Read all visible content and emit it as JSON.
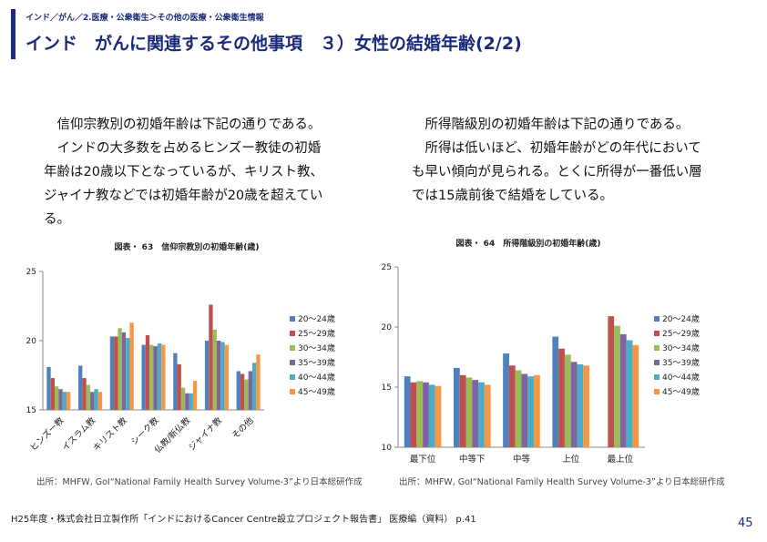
{
  "header": {
    "breadcrumb": "インド／がん／2.医療・公衆衛生＞その他の医療・公衆衛生情報",
    "title": "インド　がんに関連するその他事項　３）女性の結婚年齢(2/2)"
  },
  "left_text": [
    "信仰宗教別の初婚年齢は下記の通りである。",
    "インドの大多数を占めるヒンズー教徒の初婚年齢は20歳以下となっているが、キリスト教、ジャイナ教などでは初婚年齢が20歳を超えている。"
  ],
  "right_text": [
    "所得階級別の初婚年齢は下記の通りである。",
    "所得は低いほど、初婚年齢がどの年代においても早い傾向が見られる。とくに所得が一番低い層では15歳前後で結婚をしている。"
  ],
  "chart_data": [
    {
      "type": "bar",
      "title": "図表・ 63　信仰宗教別の初婚年齢(歳)",
      "categories": [
        "ヒンズー教",
        "イスラム教",
        "キリスト教",
        "シーク教",
        "仏教/新仏教",
        "ジャイナ教",
        "その他"
      ],
      "series": [
        {
          "name": "20～24歳",
          "color": "#4f81bd",
          "values": [
            18.1,
            18.2,
            20.3,
            19.7,
            19.1,
            20.0,
            17.8
          ]
        },
        {
          "name": "25～29歳",
          "color": "#c0504d",
          "values": [
            17.3,
            17.3,
            20.3,
            20.4,
            18.3,
            22.6,
            17.6
          ]
        },
        {
          "name": "30～34歳",
          "color": "#9bbb59",
          "values": [
            16.7,
            16.8,
            20.9,
            19.7,
            16.6,
            20.8,
            17.2
          ]
        },
        {
          "name": "35～39歳",
          "color": "#8064a2",
          "values": [
            16.5,
            16.3,
            20.6,
            19.6,
            16.2,
            20.0,
            17.8
          ]
        },
        {
          "name": "40～44歳",
          "color": "#4bacc6",
          "values": [
            16.3,
            16.5,
            20.2,
            19.8,
            16.2,
            19.9,
            18.4
          ]
        },
        {
          "name": "45～49歳",
          "color": "#f79646",
          "values": [
            16.3,
            16.3,
            21.3,
            19.7,
            17.1,
            19.7,
            19.0
          ]
        }
      ],
      "ylim": [
        15,
        25
      ],
      "yticks": [
        15,
        20,
        25
      ],
      "grid": false,
      "legend": "right",
      "source": "出所：MHFW, GoI“National Family Health Survey Volume-3”より日本総研作成"
    },
    {
      "type": "bar",
      "title": "図表・ 64　所得階級別の初婚年齢(歳)",
      "categories": [
        "最下位",
        "中等下",
        "中等",
        "上位",
        "最上位"
      ],
      "series": [
        {
          "name": "20～24歳",
          "color": "#4f81bd",
          "values": [
            15.9,
            16.6,
            17.8,
            19.2,
            null
          ]
        },
        {
          "name": "25～29歳",
          "color": "#c0504d",
          "values": [
            15.4,
            16.0,
            16.8,
            18.2,
            20.9
          ]
        },
        {
          "name": "30～34歳",
          "color": "#9bbb59",
          "values": [
            15.5,
            15.8,
            16.4,
            17.7,
            20.1
          ]
        },
        {
          "name": "35～39歳",
          "color": "#8064a2",
          "values": [
            15.4,
            15.6,
            16.1,
            17.1,
            19.4
          ]
        },
        {
          "name": "40～44歳",
          "color": "#4bacc6",
          "values": [
            15.2,
            15.4,
            15.9,
            16.9,
            18.9
          ]
        },
        {
          "name": "45～49歳",
          "color": "#f79646",
          "values": [
            15.1,
            15.2,
            16.0,
            16.8,
            18.5
          ]
        }
      ],
      "ylim": [
        10,
        25
      ],
      "yticks": [
        10,
        15,
        20,
        25
      ],
      "grid": false,
      "legend": "right",
      "source": "出所：MHFW, GoI“National Family Health Survey Volume-3”より日本総研作成"
    }
  ],
  "footer": {
    "citation": "H25年度・株式会社日立製作所「インドにおけるCancer Centre設立プロジェクト報告書」 医療編（資料） p.41",
    "page": "45"
  }
}
